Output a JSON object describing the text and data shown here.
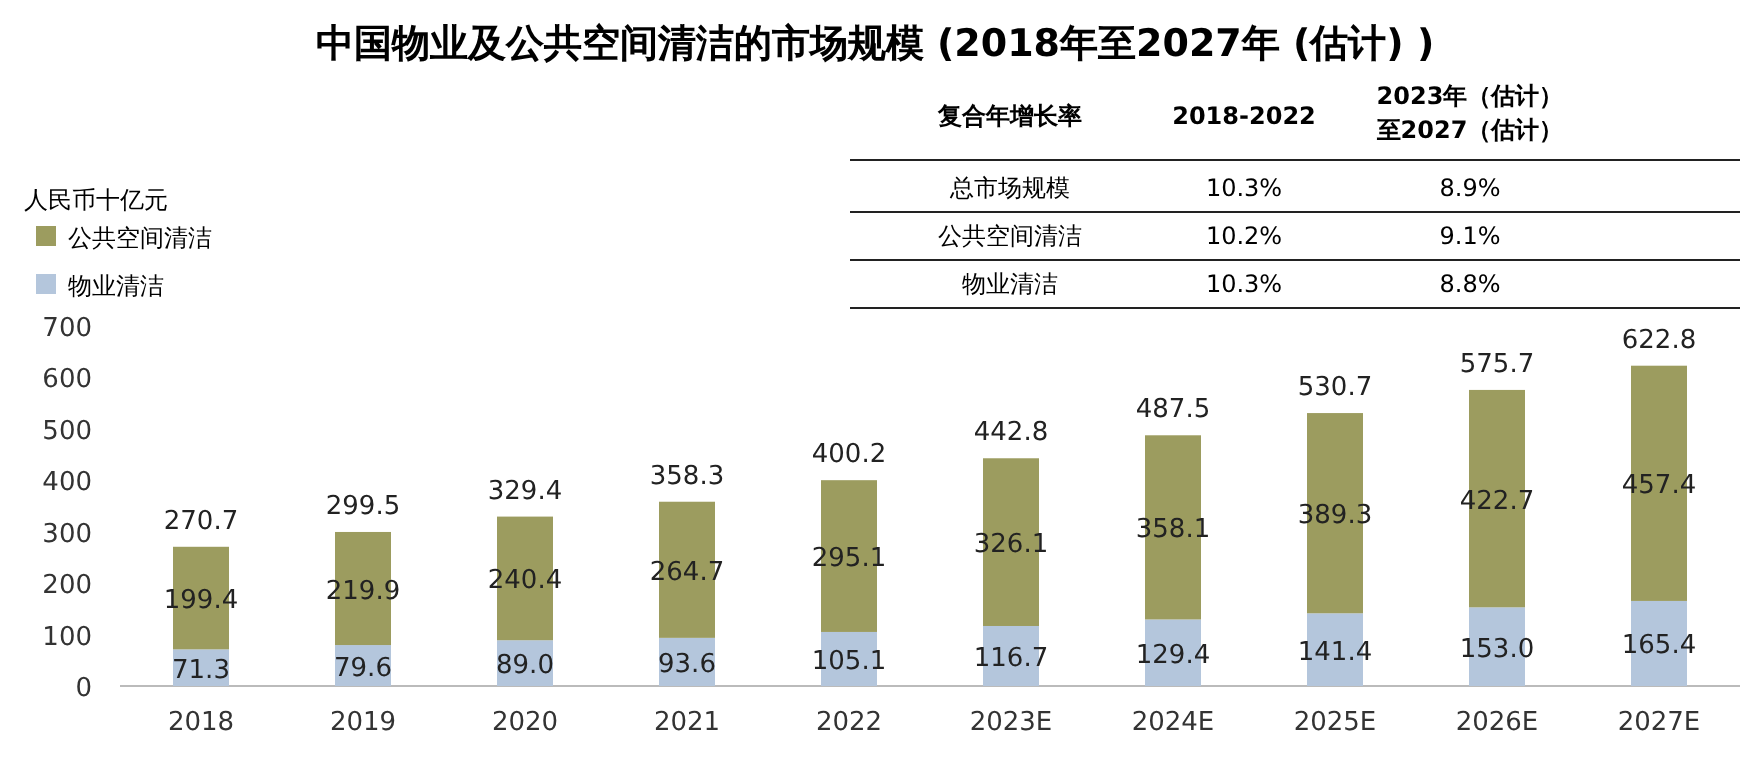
{
  "chart_data": {
    "type": "bar",
    "stacked": true,
    "title": "中国物业及公共空间清洁的市场规模 (2018年至2027年 (估计) )",
    "ylabel": "人民币十亿元",
    "categories": [
      "2018",
      "2019",
      "2020",
      "2021",
      "2022",
      "2023E",
      "2024E",
      "2025E",
      "2026E",
      "2027E"
    ],
    "series": [
      {
        "name": "物业清洁",
        "color": "#b4c6dc",
        "values": [
          71.3,
          79.6,
          89.0,
          93.6,
          105.1,
          116.7,
          129.4,
          141.4,
          153.0,
          165.4
        ]
      },
      {
        "name": "公共空间清洁",
        "color": "#9c9c5f",
        "values": [
          199.4,
          219.9,
          240.4,
          264.7,
          295.1,
          326.1,
          358.1,
          389.3,
          422.7,
          457.4
        ]
      }
    ],
    "totals": [
      "270.7",
      "299.5",
      "329.4",
      "358.3",
      "400.2",
      "442.8",
      "487.5",
      "530.7",
      "575.7",
      "622.8"
    ],
    "value_labels": [
      [
        "71.3",
        "79.6",
        "89.0",
        "93.6",
        "105.1",
        "116.7",
        "129.4",
        "141.4",
        "153.0",
        "165.4"
      ],
      [
        "199.4",
        "219.9",
        "240.4",
        "264.7",
        "295.1",
        "326.1",
        "358.1",
        "389.3",
        "422.7",
        "457.4"
      ]
    ],
    "ylim": [
      0,
      700
    ],
    "yticks": [
      0,
      100,
      200,
      300,
      400,
      500,
      600,
      700
    ],
    "grid": false,
    "legend": "top left",
    "annotations": [
      "复合年增长率",
      "2018-2022",
      "2023年（估计）至2027（估计）",
      "总市场规模",
      "10.3%",
      "8.9%",
      "公共空间清洁",
      "10.2%",
      "9.1%",
      "物业清洁",
      "10.3%",
      "8.8%"
    ]
  }
}
